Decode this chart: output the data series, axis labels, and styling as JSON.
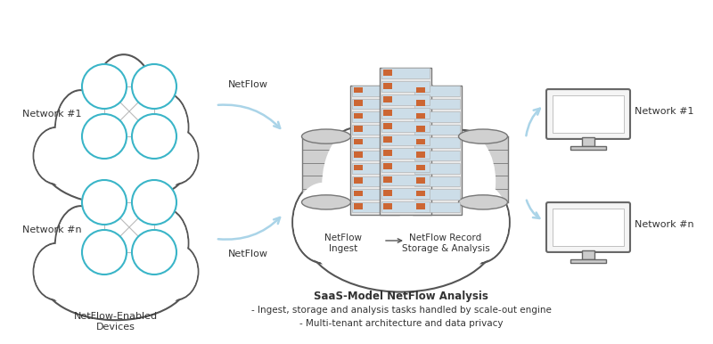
{
  "bg_color": "#ffffff",
  "cloud_edge_color": "#555555",
  "cloud_fill_color": "#ffffff",
  "node_color": "#3ab5c8",
  "node_edge": "#3ab5c8",
  "arrow_color": "#aad4e8",
  "text_color": "#333333",
  "network1_label": "Network #1",
  "networkn_label": "Network #n",
  "netflow_label": "NetFlow",
  "netflow_enabled_label": "NetFlow-Enabled\nDevices",
  "saas_title": "SaaS-Model NetFlow Analysis",
  "saas_bullet1": "- Ingest, storage and analysis tasks handled by scale-out engine",
  "saas_bullet2": "- Multi-tenant architecture and data privacy",
  "netflow_ingest": "NetFlow\nIngest",
  "netflow_record": "NetFlow Record\nStorage & Analysis",
  "network1_right": "Network #1",
  "networkn_right": "Network #n",
  "server_color": "#ccdde8",
  "server_edge": "#999999",
  "server_highlight": "#cc6633",
  "db_color": "#cccccc",
  "db_edge": "#777777",
  "rack_frame_color": "#888888",
  "rack_frame_fill": "#dddddd"
}
